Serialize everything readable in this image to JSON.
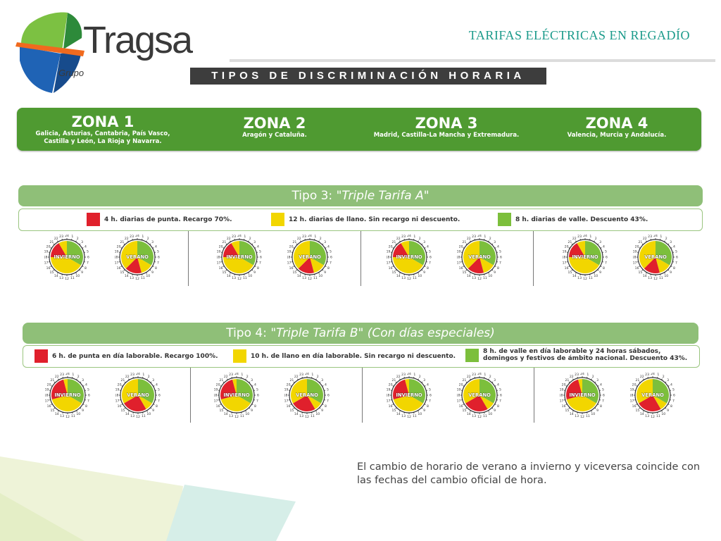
{
  "header": {
    "brand": "Tragsa",
    "brand_sub": "Grupo",
    "title": "TARIFAS ELÉCTRICAS EN REGADÍO",
    "subtitle": "TIPOS DE DISCRIMINACIÓN HORARIA"
  },
  "zones": [
    {
      "title": "ZONA 1",
      "desc": "Galicia, Asturias, Cantabria, País Vasco, Castilla y León, La Rioja y Navarra."
    },
    {
      "title": "ZONA 2",
      "desc": "Aragón y Cataluña."
    },
    {
      "title": "ZONA 3",
      "desc": "Madrid, Castilla-La Mancha y Extremadura."
    },
    {
      "title": "ZONA 4",
      "desc": "Valencia, Murcia y Andalucía."
    }
  ],
  "tipo3": {
    "prefix": "Tipo 3: ",
    "name": "\"Triple Tarifa A\"",
    "suffix": "",
    "legend": [
      {
        "color": "#e0202c",
        "text": "4 h. diarias de punta. Recargo 70%."
      },
      {
        "color": "#f2d600",
        "text": "12 h. diarias de llano. Sin recargo ni descuento."
      },
      {
        "color": "#7cbf3c",
        "text": "8 h. diarias de valle. Descuento 43%."
      }
    ]
  },
  "tipo4": {
    "prefix": "Tipo 4: ",
    "name": "\"Triple Tarifa B\"",
    "suffix": " (Con días especiales)",
    "legend": [
      {
        "color": "#e0202c",
        "text": "6 h. de punta en día laborable. Recargo 100%."
      },
      {
        "color": "#f2d600",
        "text": "10 h. de llano en día laborable. Sin recargo ni descuento."
      },
      {
        "color": "#7cbf3c",
        "text": "8 h. de valle en día laborable y 24 horas sábados, domingos y festivos de ámbito nacional. Descuento 43%."
      }
    ]
  },
  "season_labels": {
    "winter": "INVIERNO",
    "summer": "VERANO"
  },
  "clock_numbers": [
    "1",
    "2",
    "3",
    "4",
    "5",
    "6",
    "7",
    "8",
    "9",
    "10",
    "11",
    "12",
    "13",
    "14",
    "15",
    "16",
    "17",
    "18",
    "19",
    "20",
    "21",
    "22",
    "23",
    "24"
  ],
  "colors": {
    "punta": "#e0202c",
    "llano": "#f2d600",
    "valle": "#7cbf3c",
    "zone_bar": "#4f9a31",
    "tipo_bar": "#8fbf78",
    "title_teal": "#1a9a8a"
  },
  "footer_note": "El cambio de horario de verano a invierno y viceversa coincide con las fechas del cambio oficial de hora."
}
